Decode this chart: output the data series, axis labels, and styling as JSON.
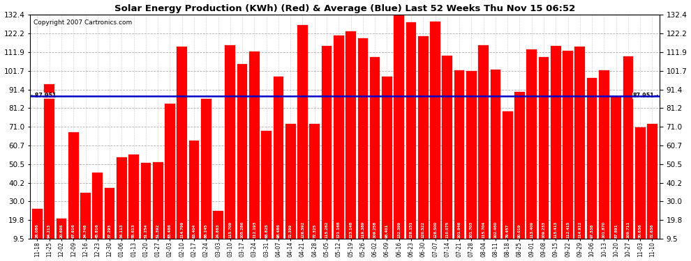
{
  "title": "Solar Energy Production (KWh) (Red) & Average (Blue) Last 52 Weeks Thu Nov 15 06:52",
  "copyright": "Copyright 2007 Cartronics.com",
  "average": 87.951,
  "ylim_min": 9.5,
  "ylim_max": 132.4,
  "yticks": [
    9.5,
    19.8,
    30.0,
    40.2,
    50.5,
    60.7,
    71.0,
    81.2,
    91.4,
    101.7,
    111.9,
    122.2,
    132.4
  ],
  "bar_color": "#FF0000",
  "avg_line_color": "#0000CC",
  "background_color": "#FFFFFF",
  "grid_color": "#999999",
  "dates": [
    "11-18",
    "11-25",
    "12-02",
    "12-09",
    "12-16",
    "12-23",
    "12-30",
    "01-06",
    "01-13",
    "01-20",
    "01-27",
    "02-03",
    "02-10",
    "02-17",
    "02-24",
    "03-03",
    "03-10",
    "03-17",
    "03-24",
    "03-31",
    "04-07",
    "04-14",
    "04-21",
    "04-28",
    "05-05",
    "05-12",
    "05-19",
    "05-26",
    "06-02",
    "06-09",
    "06-16",
    "06-23",
    "06-30",
    "07-07",
    "07-14",
    "07-21",
    "07-28",
    "08-04",
    "08-11",
    "08-18",
    "08-25",
    "09-01",
    "09-08",
    "09-15",
    "09-22",
    "09-29",
    "10-06",
    "10-13",
    "10-20",
    "10-27",
    "11-03",
    "11-10"
  ],
  "values": [
    26.086,
    94.213,
    20.698,
    67.916,
    34.748,
    45.816,
    37.293,
    54.113,
    55.613,
    51.254,
    51.392,
    83.486,
    114.799,
    63.404,
    86.245,
    24.863,
    115.709,
    105.286,
    112.193,
    68.825,
    98.486,
    72.399,
    126.592,
    72.325,
    115.262,
    121.168,
    123.148,
    119.389,
    109.258,
    98.401,
    132.399,
    128.151,
    120.522,
    128.5,
    110.075,
    101.946,
    101.703,
    115.704,
    102.46,
    79.457,
    90.019,
    113.409,
    109.233,
    115.413,
    112.415,
    114.912,
    97.538,
    101.87,
    87.891,
    109.711,
    70.636,
    72.636
  ],
  "value_labels": [
    "26.086",
    "94.213",
    "20.698",
    "67.916",
    "34.748",
    "45.816",
    "37.293",
    "54.113",
    "55.613",
    "51.254",
    "51.392",
    "83.486",
    "114.799",
    "63.404",
    "86.245",
    "24.863",
    "115.709",
    "105.286",
    "112.193",
    "68.825",
    "98.486",
    "72.399",
    "126.592",
    "72.325",
    "115.262",
    "121.168",
    "123.148",
    "119.389",
    "109.258",
    "98.401",
    "132.399",
    "128.151",
    "120.522",
    "128.500",
    "110.075",
    "101.946",
    "101.703",
    "115.704",
    "102.460",
    "79.457",
    "90.019",
    "113.409",
    "109.233",
    "115.413",
    "112.415",
    "114.912",
    "97.538",
    "101.870",
    "87.891",
    "109.711",
    "70.636",
    "72.636"
  ]
}
